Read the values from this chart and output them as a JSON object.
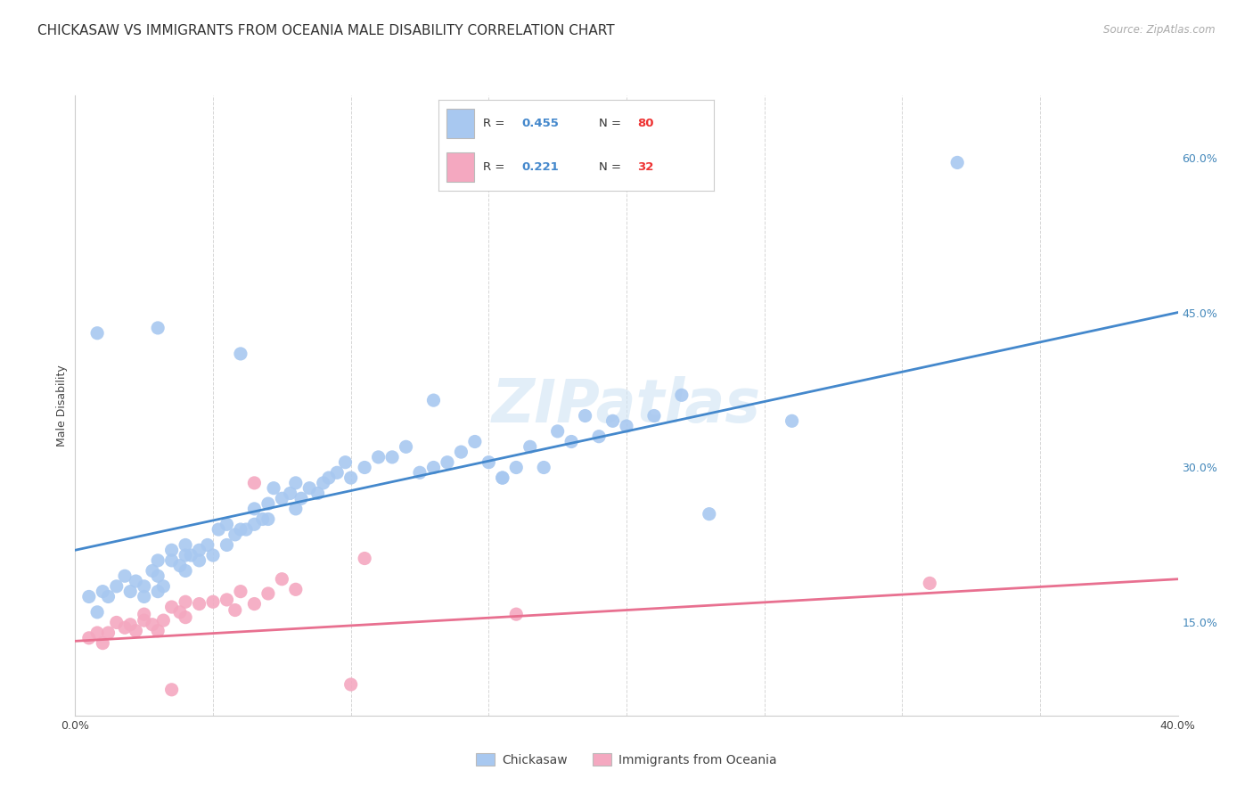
{
  "title": "CHICKASAW VS IMMIGRANTS FROM OCEANIA MALE DISABILITY CORRELATION CHART",
  "source": "Source: ZipAtlas.com",
  "ylabel": "Male Disability",
  "ylabel_right_ticks": [
    "15.0%",
    "30.0%",
    "45.0%",
    "60.0%"
  ],
  "ylabel_right_vals": [
    0.15,
    0.3,
    0.45,
    0.6
  ],
  "xlim": [
    0.0,
    0.4
  ],
  "ylim": [
    0.06,
    0.66
  ],
  "watermark": "ZIPatlas",
  "legend_blue_r": "0.455",
  "legend_blue_n": "80",
  "legend_pink_r": "0.221",
  "legend_pink_n": "32",
  "blue_color": "#A8C8F0",
  "pink_color": "#F4A8C0",
  "blue_line_color": "#4488CC",
  "pink_line_color": "#E87090",
  "blue_scatter": [
    [
      0.005,
      0.175
    ],
    [
      0.008,
      0.16
    ],
    [
      0.01,
      0.18
    ],
    [
      0.012,
      0.175
    ],
    [
      0.015,
      0.185
    ],
    [
      0.018,
      0.195
    ],
    [
      0.02,
      0.18
    ],
    [
      0.022,
      0.19
    ],
    [
      0.025,
      0.175
    ],
    [
      0.025,
      0.185
    ],
    [
      0.028,
      0.2
    ],
    [
      0.03,
      0.195
    ],
    [
      0.03,
      0.21
    ],
    [
      0.03,
      0.18
    ],
    [
      0.032,
      0.185
    ],
    [
      0.035,
      0.22
    ],
    [
      0.035,
      0.21
    ],
    [
      0.038,
      0.205
    ],
    [
      0.04,
      0.215
    ],
    [
      0.04,
      0.225
    ],
    [
      0.04,
      0.2
    ],
    [
      0.042,
      0.215
    ],
    [
      0.045,
      0.22
    ],
    [
      0.045,
      0.21
    ],
    [
      0.048,
      0.225
    ],
    [
      0.05,
      0.215
    ],
    [
      0.052,
      0.24
    ],
    [
      0.055,
      0.225
    ],
    [
      0.055,
      0.245
    ],
    [
      0.058,
      0.235
    ],
    [
      0.06,
      0.24
    ],
    [
      0.062,
      0.24
    ],
    [
      0.065,
      0.245
    ],
    [
      0.065,
      0.26
    ],
    [
      0.068,
      0.25
    ],
    [
      0.07,
      0.25
    ],
    [
      0.07,
      0.265
    ],
    [
      0.072,
      0.28
    ],
    [
      0.075,
      0.27
    ],
    [
      0.078,
      0.275
    ],
    [
      0.08,
      0.26
    ],
    [
      0.08,
      0.285
    ],
    [
      0.082,
      0.27
    ],
    [
      0.085,
      0.28
    ],
    [
      0.088,
      0.275
    ],
    [
      0.09,
      0.285
    ],
    [
      0.092,
      0.29
    ],
    [
      0.095,
      0.295
    ],
    [
      0.098,
      0.305
    ],
    [
      0.1,
      0.29
    ],
    [
      0.105,
      0.3
    ],
    [
      0.11,
      0.31
    ],
    [
      0.115,
      0.31
    ],
    [
      0.12,
      0.32
    ],
    [
      0.125,
      0.295
    ],
    [
      0.13,
      0.3
    ],
    [
      0.135,
      0.305
    ],
    [
      0.14,
      0.315
    ],
    [
      0.145,
      0.325
    ],
    [
      0.15,
      0.305
    ],
    [
      0.155,
      0.29
    ],
    [
      0.16,
      0.3
    ],
    [
      0.165,
      0.32
    ],
    [
      0.17,
      0.3
    ],
    [
      0.175,
      0.335
    ],
    [
      0.18,
      0.325
    ],
    [
      0.185,
      0.35
    ],
    [
      0.19,
      0.33
    ],
    [
      0.195,
      0.345
    ],
    [
      0.2,
      0.34
    ],
    [
      0.21,
      0.35
    ],
    [
      0.22,
      0.37
    ],
    [
      0.23,
      0.255
    ],
    [
      0.26,
      0.345
    ],
    [
      0.008,
      0.43
    ],
    [
      0.03,
      0.435
    ],
    [
      0.06,
      0.41
    ],
    [
      0.13,
      0.365
    ],
    [
      0.155,
      0.29
    ],
    [
      0.32,
      0.595
    ]
  ],
  "pink_scatter": [
    [
      0.005,
      0.135
    ],
    [
      0.008,
      0.14
    ],
    [
      0.01,
      0.13
    ],
    [
      0.012,
      0.14
    ],
    [
      0.015,
      0.15
    ],
    [
      0.018,
      0.145
    ],
    [
      0.02,
      0.148
    ],
    [
      0.022,
      0.142
    ],
    [
      0.025,
      0.152
    ],
    [
      0.025,
      0.158
    ],
    [
      0.028,
      0.148
    ],
    [
      0.03,
      0.142
    ],
    [
      0.032,
      0.152
    ],
    [
      0.035,
      0.165
    ],
    [
      0.038,
      0.16
    ],
    [
      0.04,
      0.17
    ],
    [
      0.04,
      0.155
    ],
    [
      0.045,
      0.168
    ],
    [
      0.05,
      0.17
    ],
    [
      0.055,
      0.172
    ],
    [
      0.058,
      0.162
    ],
    [
      0.06,
      0.18
    ],
    [
      0.065,
      0.168
    ],
    [
      0.065,
      0.285
    ],
    [
      0.07,
      0.178
    ],
    [
      0.075,
      0.192
    ],
    [
      0.08,
      0.182
    ],
    [
      0.105,
      0.212
    ],
    [
      0.16,
      0.158
    ],
    [
      0.035,
      0.085
    ],
    [
      0.1,
      0.09
    ],
    [
      0.31,
      0.188
    ]
  ],
  "blue_line": [
    [
      0.0,
      0.22
    ],
    [
      0.4,
      0.45
    ]
  ],
  "pink_line": [
    [
      0.0,
      0.132
    ],
    [
      0.4,
      0.192
    ]
  ],
  "grid_color": "#CCCCCC",
  "bg_color": "#FFFFFF",
  "title_fontsize": 11,
  "axis_label_fontsize": 9,
  "tick_fontsize": 9,
  "watermark_fontsize": 48,
  "watermark_color": "#D0E4F4",
  "watermark_alpha": 0.6
}
